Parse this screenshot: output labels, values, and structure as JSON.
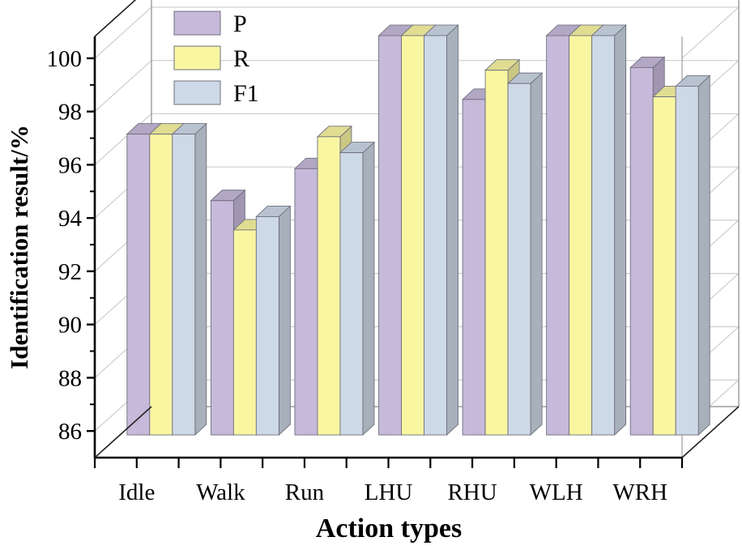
{
  "figure": {
    "background": "#ffffff",
    "axis_color": "#000000",
    "grid_color": "#cdcdcd",
    "wall_edge_color": "#8a8a8a",
    "bar_edge_color": "#70707e"
  },
  "chart_data": {
    "type": "bar",
    "projection": "3d",
    "title": "",
    "xlabel": "Action types",
    "ylabel": "Identification result/%",
    "categories": [
      "Idle",
      "Walk",
      "Run",
      "LHU",
      "RHU",
      "WLH",
      "WRH"
    ],
    "series": [
      {
        "name": "P",
        "color": "#c6b9da",
        "values": [
          96.3,
          93.8,
          95.0,
          100.0,
          97.6,
          100.0,
          98.8
        ]
      },
      {
        "name": "R",
        "color": "#f9f6a2",
        "values": [
          96.3,
          92.7,
          96.2,
          100.0,
          98.7,
          100.0,
          97.7
        ]
      },
      {
        "name": "F1",
        "color": "#ced9e7",
        "values": [
          96.3,
          93.2,
          95.6,
          100.0,
          98.2,
          100.0,
          98.1
        ]
      }
    ],
    "ylim": [
      85,
      100.82
    ],
    "yticks": [
      86,
      88,
      90,
      92,
      94,
      96,
      98,
      100
    ],
    "yticks_minor": [
      87,
      89,
      91,
      93,
      95,
      97,
      99
    ],
    "grid": true,
    "legend_position": "top-left"
  }
}
